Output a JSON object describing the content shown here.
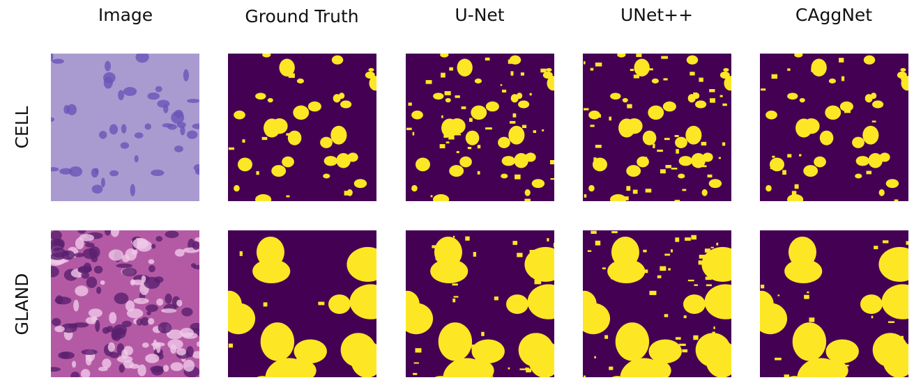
{
  "columns": [
    "Image",
    "Ground Truth",
    "U-Net",
    "UNet++",
    "CAggNet"
  ],
  "rows": [
    "CELL",
    "GLAND"
  ]
}
